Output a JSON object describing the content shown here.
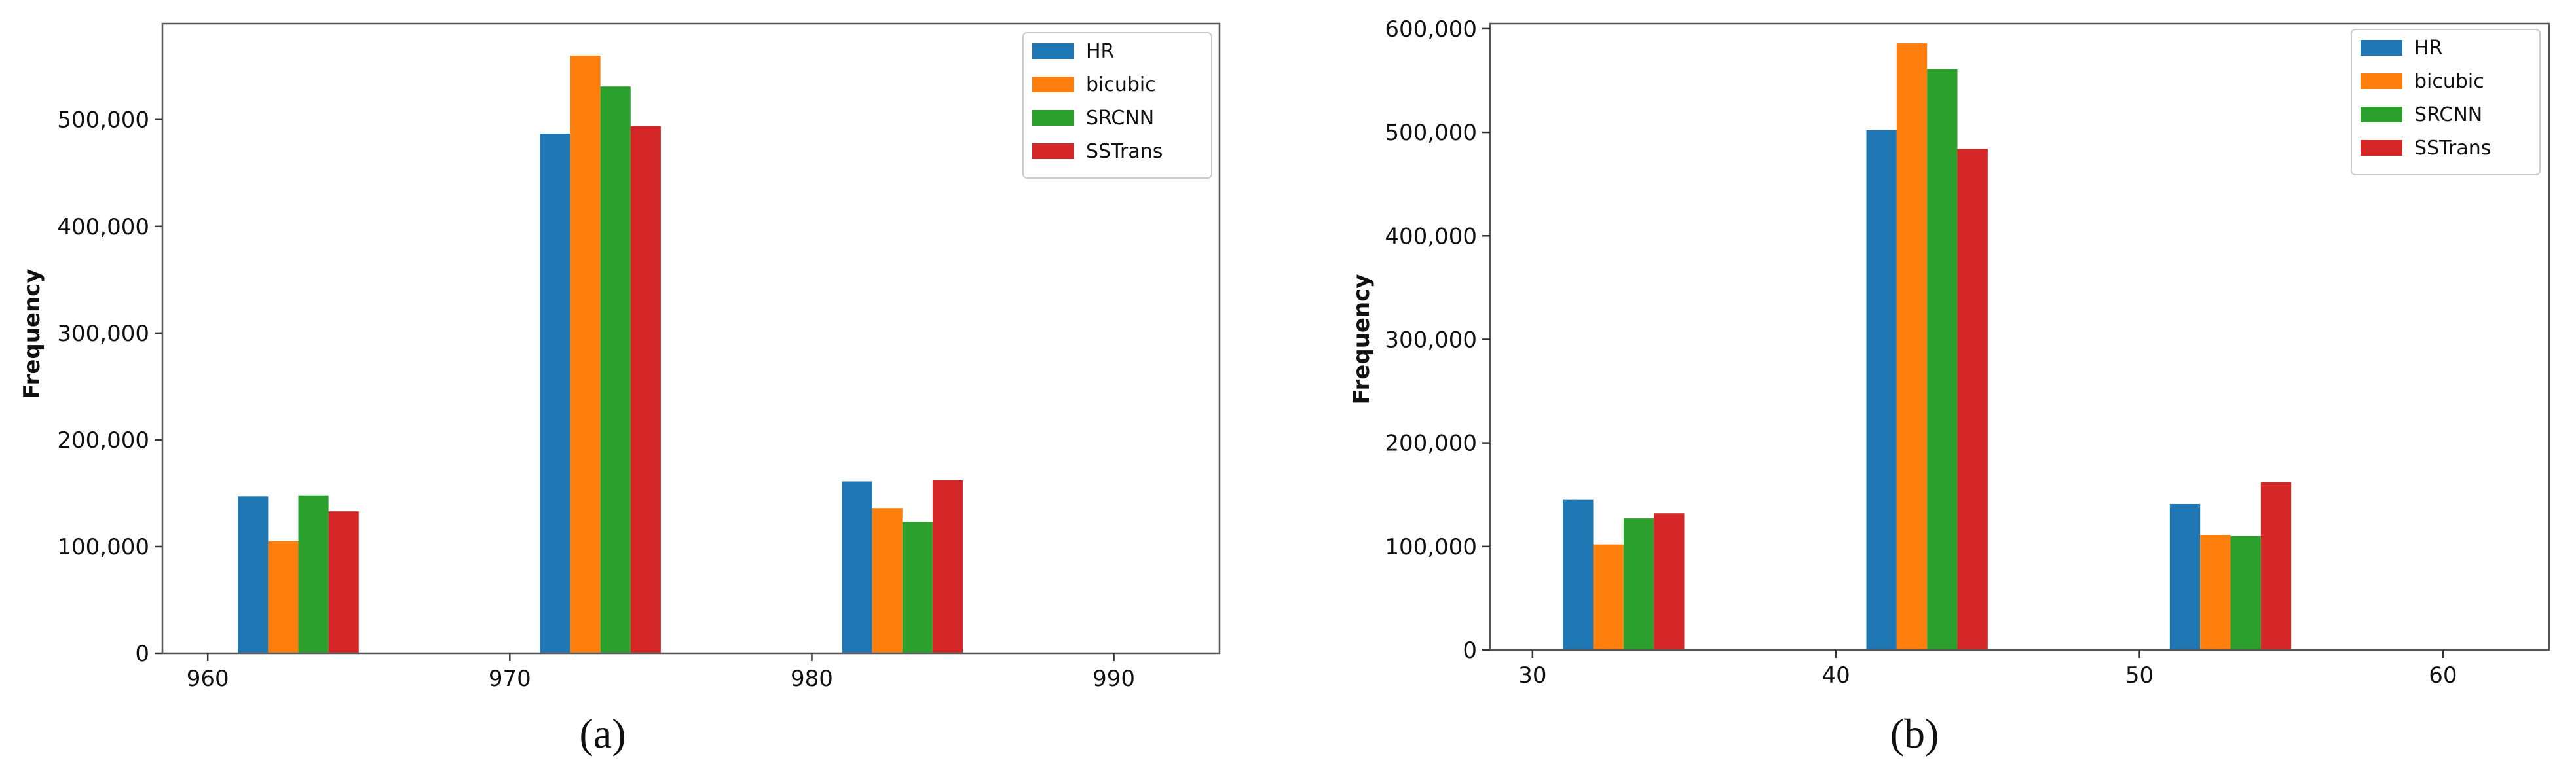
{
  "colors": {
    "HR": "#1f77b4",
    "bicubic": "#ff7f0e",
    "SRCNN": "#2ca02c",
    "SSTrans": "#d62728"
  },
  "chart_data": [
    {
      "type": "bar",
      "caption": "(a)",
      "ylabel": "Frequency",
      "xlim": [
        958.5,
        993.5
      ],
      "ylim": [
        0,
        590000
      ],
      "xticks": [
        "960",
        "970",
        "980",
        "990"
      ],
      "xtick_values": [
        960,
        970,
        980,
        990
      ],
      "yticks": [
        "0",
        "100,000",
        "200,000",
        "300,000",
        "400,000",
        "500,000"
      ],
      "ytick_values": [
        0,
        100000,
        200000,
        300000,
        400000,
        500000
      ],
      "legend_position": "top-right",
      "bar_width": 1,
      "series": [
        {
          "name": "HR",
          "x": [
            961.5,
            971.5,
            981.5
          ],
          "values": [
            147000,
            487000,
            161000
          ]
        },
        {
          "name": "bicubic",
          "x": [
            962.5,
            972.5,
            982.5
          ],
          "values": [
            105000,
            560000,
            136000
          ]
        },
        {
          "name": "SRCNN",
          "x": [
            963.5,
            973.5,
            983.5
          ],
          "values": [
            148000,
            531000,
            123000
          ]
        },
        {
          "name": "SSTrans",
          "x": [
            964.5,
            974.5,
            984.5
          ],
          "values": [
            133000,
            494000,
            162000
          ]
        }
      ]
    },
    {
      "type": "bar",
      "caption": "(b)",
      "ylabel": "Frequency",
      "xlim": [
        28.6,
        63.5
      ],
      "ylim": [
        0,
        605000
      ],
      "xticks": [
        "30",
        "40",
        "50",
        "60"
      ],
      "xtick_values": [
        30,
        40,
        50,
        60
      ],
      "yticks": [
        "0",
        "100,000",
        "200,000",
        "300,000",
        "400,000",
        "500,000",
        "600,000"
      ],
      "ytick_values": [
        0,
        100000,
        200000,
        300000,
        400000,
        500000,
        600000
      ],
      "legend_position": "top-right",
      "bar_width": 1,
      "series": [
        {
          "name": "HR",
          "x": [
            31.5,
            41.5,
            51.5
          ],
          "values": [
            145000,
            502000,
            141000
          ]
        },
        {
          "name": "bicubic",
          "x": [
            32.5,
            42.5,
            52.5
          ],
          "values": [
            102000,
            586000,
            111000
          ]
        },
        {
          "name": "SRCNN",
          "x": [
            33.5,
            43.5,
            53.5
          ],
          "values": [
            127000,
            561000,
            110000
          ]
        },
        {
          "name": "SSTrans",
          "x": [
            34.5,
            44.5,
            54.5
          ],
          "values": [
            132000,
            484000,
            162000
          ]
        }
      ]
    }
  ]
}
